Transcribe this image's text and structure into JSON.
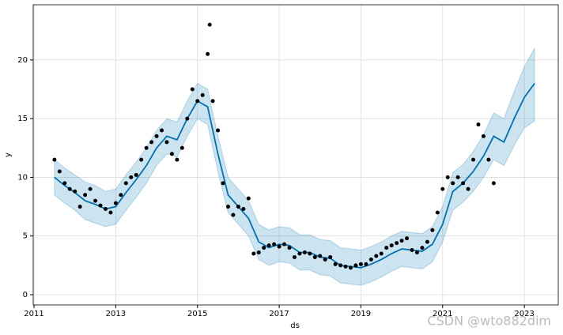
{
  "chart_data": {
    "type": "line",
    "xlabel": "ds",
    "ylabel": "y",
    "watermark": "CSDN @wto882dim",
    "xlim": [
      2010.98,
      2023.83
    ],
    "ylim": [
      -0.875,
      24.7
    ],
    "xticks": [
      2011,
      2013,
      2015,
      2017,
      2019,
      2021,
      2023
    ],
    "yticks": [
      0,
      5,
      10,
      15,
      20
    ],
    "grid": true,
    "x": [
      2011.5,
      2011.75,
      2012,
      2012.25,
      2012.5,
      2012.75,
      2013,
      2013.25,
      2013.5,
      2013.75,
      2014,
      2014.25,
      2014.5,
      2014.75,
      2015,
      2015.25,
      2015.5,
      2015.75,
      2016,
      2016.25,
      2016.5,
      2016.75,
      2017,
      2017.25,
      2017.5,
      2017.75,
      2018,
      2018.25,
      2018.5,
      2018.75,
      2019,
      2019.25,
      2019.5,
      2019.75,
      2020,
      2020.25,
      2020.5,
      2020.75,
      2021,
      2021.25,
      2021.5,
      2021.75,
      2022,
      2022.25,
      2022.5,
      2022.75,
      2023,
      2023.25
    ],
    "series": [
      {
        "color": "#0072b2",
        "values": [
          10.0,
          9.3,
          8.7,
          8.0,
          7.7,
          7.3,
          7.5,
          8.7,
          9.8,
          11.0,
          12.5,
          13.5,
          13.2,
          15.0,
          16.5,
          16.0,
          12.0,
          8.5,
          7.5,
          6.5,
          4.5,
          4.0,
          4.3,
          4.2,
          3.6,
          3.6,
          3.2,
          3.1,
          2.5,
          2.4,
          2.3,
          2.6,
          3.0,
          3.5,
          3.9,
          3.8,
          3.7,
          4.3,
          6.0,
          8.8,
          9.5,
          10.5,
          11.8,
          13.5,
          13.0,
          15.0,
          16.8,
          18.0
        ]
      }
    ],
    "band": {
      "color": "#0072b2",
      "lower": [
        8.5,
        7.8,
        7.2,
        6.4,
        6.1,
        5.8,
        6.0,
        7.2,
        8.3,
        9.5,
        11.0,
        12.0,
        11.7,
        13.5,
        15.0,
        14.5,
        10.5,
        7.0,
        6.0,
        5.0,
        3.0,
        2.5,
        2.8,
        2.7,
        2.1,
        2.1,
        1.7,
        1.6,
        1.0,
        0.9,
        0.8,
        1.1,
        1.5,
        2.0,
        2.4,
        2.3,
        2.2,
        2.8,
        4.5,
        7.2,
        7.9,
        8.8,
        10.0,
        11.5,
        11.0,
        12.7,
        14.2,
        14.8
      ],
      "upper": [
        11.5,
        10.8,
        10.2,
        9.6,
        9.3,
        8.8,
        9.0,
        10.2,
        11.3,
        12.5,
        14.0,
        15.0,
        14.7,
        16.5,
        18.0,
        17.5,
        13.5,
        10.0,
        9.0,
        8.0,
        6.0,
        5.5,
        5.8,
        5.7,
        5.1,
        5.1,
        4.7,
        4.6,
        4.0,
        3.9,
        3.8,
        4.1,
        4.5,
        5.0,
        5.4,
        5.3,
        5.2,
        5.8,
        7.5,
        10.4,
        11.1,
        12.2,
        13.6,
        15.5,
        15.0,
        17.3,
        19.4,
        21.0
      ]
    },
    "points": {
      "color": "#000000",
      "x": [
        2011.5,
        2011.625,
        2011.75,
        2011.875,
        2012,
        2012.125,
        2012.25,
        2012.375,
        2012.5,
        2012.625,
        2012.75,
        2012.875,
        2013,
        2013.125,
        2013.25,
        2013.375,
        2013.5,
        2013.625,
        2013.75,
        2013.875,
        2014,
        2014.125,
        2014.25,
        2014.375,
        2014.5,
        2014.625,
        2014.75,
        2014.875,
        2015,
        2015.125,
        2015.25,
        2015.3,
        2015.375,
        2015.5,
        2015.625,
        2015.75,
        2015.875,
        2016,
        2016.125,
        2016.25,
        2016.375,
        2016.5,
        2016.625,
        2016.75,
        2016.875,
        2017,
        2017.125,
        2017.25,
        2017.375,
        2017.5,
        2017.625,
        2017.75,
        2017.875,
        2018,
        2018.125,
        2018.25,
        2018.375,
        2018.5,
        2018.625,
        2018.75,
        2018.875,
        2019,
        2019.125,
        2019.25,
        2019.375,
        2019.5,
        2019.625,
        2019.75,
        2019.875,
        2020,
        2020.125,
        2020.25,
        2020.375,
        2020.5,
        2020.625,
        2020.75,
        2020.875,
        2021,
        2021.125,
        2021.25,
        2021.375,
        2021.5,
        2021.625,
        2021.75,
        2021.875,
        2022,
        2022.125,
        2022.25
      ],
      "y": [
        11.5,
        10.5,
        9.5,
        9.0,
        8.8,
        7.5,
        8.5,
        9.0,
        8.0,
        7.6,
        7.3,
        7.0,
        7.8,
        8.5,
        9.5,
        10.0,
        10.2,
        11.5,
        12.5,
        13.0,
        13.5,
        14.0,
        13.0,
        12.0,
        11.5,
        12.5,
        15.0,
        17.5,
        16.5,
        17.0,
        20.5,
        23.0,
        16.5,
        14.0,
        9.5,
        7.5,
        6.8,
        7.5,
        7.3,
        8.2,
        3.5,
        3.6,
        4.0,
        4.2,
        4.3,
        4.1,
        4.3,
        4.0,
        3.2,
        3.5,
        3.6,
        3.5,
        3.2,
        3.3,
        3.0,
        3.2,
        2.6,
        2.5,
        2.4,
        2.3,
        2.5,
        2.6,
        2.6,
        3.0,
        3.3,
        3.5,
        4.0,
        4.2,
        4.4,
        4.6,
        4.8,
        3.8,
        3.6,
        4.0,
        4.5,
        5.5,
        7.0,
        9.0,
        10.0,
        9.5,
        10.0,
        9.5,
        9.0,
        11.5,
        14.5,
        13.5,
        11.5,
        9.5
      ]
    }
  }
}
